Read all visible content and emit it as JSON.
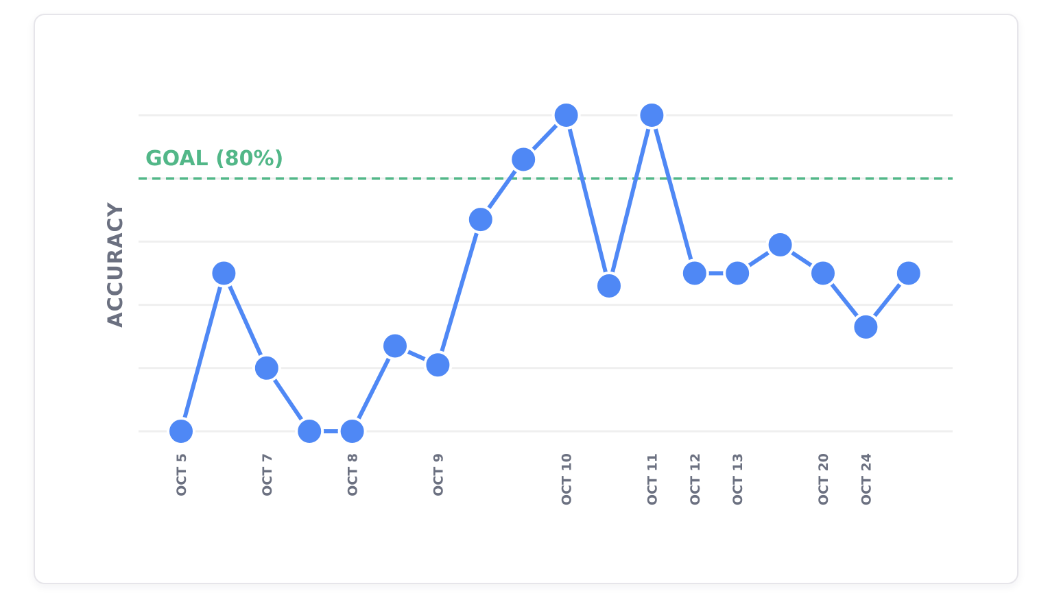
{
  "chart_data": {
    "type": "line",
    "title": "",
    "xlabel": "",
    "ylabel": "ACCURACY",
    "ylim": [
      0,
      100
    ],
    "grid": true,
    "y_gridlines": [
      0,
      20,
      40,
      60,
      80,
      100
    ],
    "categories": [
      "OCT 5",
      "",
      "OCT 7",
      "",
      "OCT 8",
      "",
      "OCT 9",
      "",
      "",
      "OCT 10",
      "",
      "OCT 11",
      "OCT 12",
      "OCT 13",
      "",
      "OCT 20",
      "OCT 24",
      ""
    ],
    "series": [
      {
        "name": "Accuracy",
        "color": "#4f88f5",
        "values": [
          0,
          50,
          20,
          0,
          0,
          27,
          21,
          67,
          86,
          100,
          46,
          100,
          50,
          50,
          59,
          50,
          33,
          50
        ]
      }
    ],
    "annotations": [
      {
        "type": "hline",
        "y": 80,
        "label": "GOAL (80%)",
        "color": "#52b788",
        "style": "dashed"
      }
    ],
    "legend": null
  },
  "labels": {
    "goal": "GOAL (80%)",
    "y_axis": "ACCURACY"
  },
  "colors": {
    "series": "#4f88f5",
    "goal": "#52b788",
    "axis_text": "#6b7080",
    "grid": "#efefef"
  }
}
